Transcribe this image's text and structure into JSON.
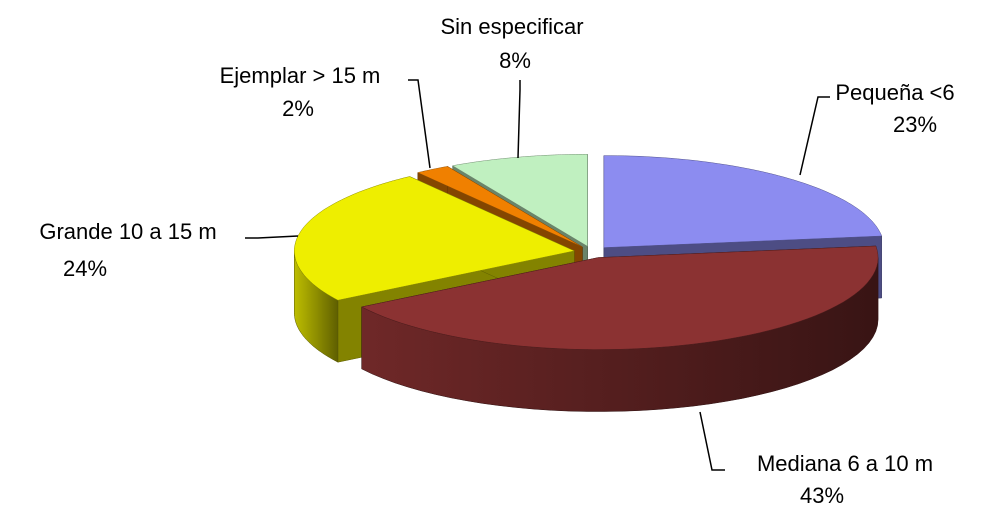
{
  "chart_data": {
    "type": "pie3d",
    "categories": [
      "Pequeña <6",
      "Mediana 6 a 10 m",
      "Grande 10 a 15 m",
      "Ejemplar > 15 m",
      "Sin especificar"
    ],
    "values": [
      23,
      43,
      24,
      2,
      8
    ],
    "value_labels": [
      "23%",
      "43%",
      "24%",
      "2%",
      "8%"
    ],
    "colors": [
      "#8c8cf0",
      "#8b3232",
      "#eeee00",
      "#f08000",
      "#c0f0c0"
    ],
    "start_angle": "top",
    "direction": "clockwise"
  }
}
